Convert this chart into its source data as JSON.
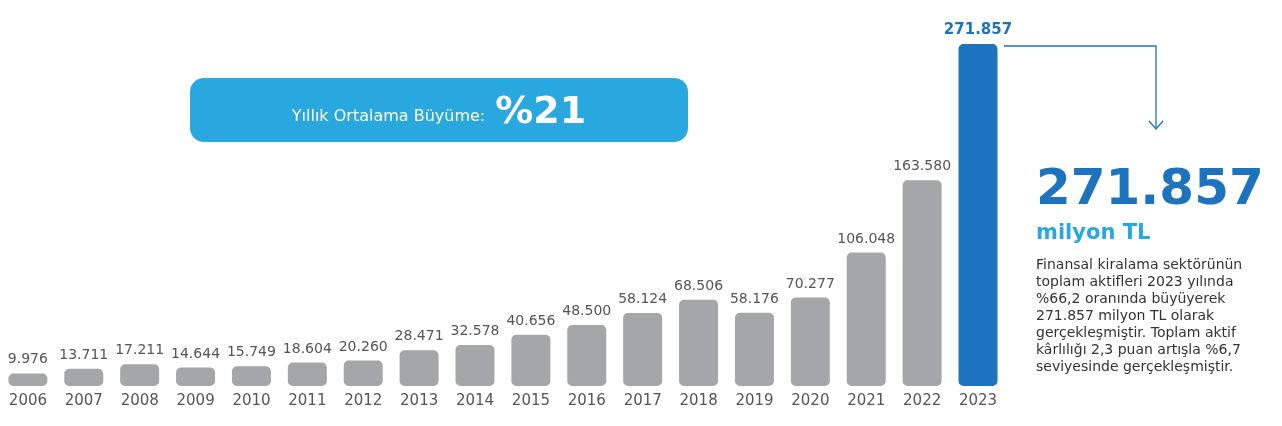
{
  "chart_data": {
    "type": "bar",
    "categories": [
      "2006",
      "2007",
      "2008",
      "2009",
      "2010",
      "2011",
      "2012",
      "2013",
      "2014",
      "2015",
      "2016",
      "2017",
      "2018",
      "2019",
      "2020",
      "2021",
      "2022",
      "2023"
    ],
    "values": [
      9976,
      13711,
      17211,
      14644,
      15749,
      18604,
      20260,
      28471,
      32578,
      40656,
      48500,
      58124,
      68506,
      58176,
      70277,
      106048,
      163580,
      271857
    ],
    "value_labels": [
      "9.976",
      "13.711",
      "17.211",
      "14.644",
      "15.749",
      "18.604",
      "20.260",
      "28.471",
      "32.578",
      "40.656",
      "48.500",
      "58.124",
      "68.506",
      "58.176",
      "70.277",
      "106.048",
      "163.580",
      "271.857"
    ],
    "colors": [
      "#a5a6aa",
      "#a5a6aa",
      "#a5a6aa",
      "#a5a6aa",
      "#a5a6aa",
      "#a5a6aa",
      "#a5a6aa",
      "#a5a6aa",
      "#a5a6aa",
      "#a5a6aa",
      "#a5a6aa",
      "#a5a6aa",
      "#a5a6aa",
      "#a5a6aa",
      "#a5a6aa",
      "#a5a6aa",
      "#a5a6aa",
      "#1e73be"
    ],
    "tick_labels": "x",
    "annotations": [
      "Yıllık Ortalama Büyüme:",
      "%21",
      "271.857",
      "milyon TL",
      "Finansal kiralama sektörünün toplam aktifleri 2023 yılında %66,2 oranında büyüyerek 271.857 milyon TL olarak gerçekleşmiştir. Toplam aktif kârlılığı 2,3 puan artışla %6,7 seviyesinde gerçekleşmiştir."
    ]
  }
}
